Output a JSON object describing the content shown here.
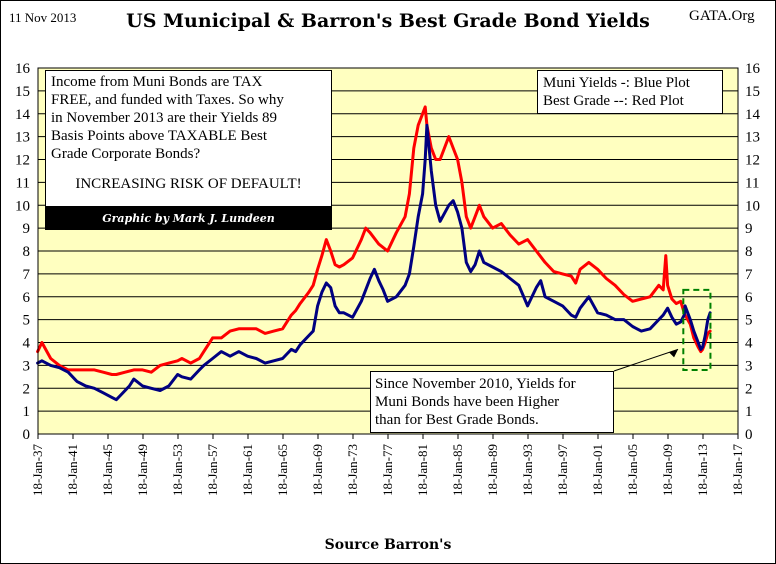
{
  "header": {
    "date": "11 Nov 2013",
    "title": "US Municipal & Barron's Best Grade Bond Yields",
    "site": "GATA.Org"
  },
  "annotations": {
    "note_lines": [
      "Income from Muni Bonds are TAX",
      "FREE, and funded with Taxes.  So why",
      "in November 2013 are their Yields 89",
      "Basis Points above TAXABLE Best",
      "Grade Corporate Bonds?"
    ],
    "warning": "INCREASING RISK OF DEFAULT!",
    "credit": "Graphic by Mark J. Lundeen",
    "legend_line1": "Muni Yields -: Blue Plot",
    "legend_line2": "Best Grade --: Red Plot",
    "since_lines": [
      "Since November 2010,  Yields for",
      "Muni Bonds have been Higher",
      "than for Best Grade Bonds."
    ],
    "source": "Source Barron's"
  },
  "colors": {
    "plot_background": "#ffffc0",
    "muni": "#000080",
    "best_grade": "#ff0000",
    "highlight_box": "#008000"
  },
  "chart_data": {
    "type": "line",
    "title": "US Municipal & Barron's Best Grade Bond Yields",
    "xlabel": "Source Barron's",
    "ylabel": "",
    "xlim": [
      1937.05,
      2017.05
    ],
    "ylim": [
      0,
      16
    ],
    "y_ticks": [
      "0",
      "1",
      "2",
      "3",
      "4",
      "5",
      "6",
      "7",
      "8",
      "9",
      "10",
      "11",
      "12",
      "13",
      "14",
      "15",
      "16"
    ],
    "x_tick_labels": [
      "18-Jan-37",
      "18-Jan-41",
      "18-Jan-45",
      "18-Jan-49",
      "18-Jan-53",
      "18-Jan-57",
      "18-Jan-61",
      "18-Jan-65",
      "18-Jan-69",
      "18-Jan-73",
      "18-Jan-77",
      "18-Jan-81",
      "18-Jan-85",
      "18-Jan-89",
      "18-Jan-93",
      "18-Jan-97",
      "18-Jan-01",
      "18-Jan-05",
      "18-Jan-09",
      "18-Jan-13",
      "18-Jan-17"
    ],
    "x_tick_years": [
      1937.05,
      1941.05,
      1945.05,
      1949.05,
      1953.05,
      1957.05,
      1961.05,
      1965.05,
      1969.05,
      1973.05,
      1977.05,
      1981.05,
      1985.05,
      1989.05,
      1993.05,
      1997.05,
      2001.05,
      2005.05,
      2009.05,
      2013.05,
      2017.05
    ],
    "highlight_range": {
      "x": [
        2010.8,
        2013.9
      ],
      "y": [
        2.8,
        6.3
      ]
    },
    "series": [
      {
        "name": "Muni Yields",
        "color": "#000080",
        "x": [
          1937.0,
          1937.5,
          1938.5,
          1939.5,
          1940.5,
          1941.5,
          1942.5,
          1943.5,
          1944.5,
          1945.5,
          1946.0,
          1946.5,
          1947.5,
          1948.0,
          1949.0,
          1950.0,
          1951.0,
          1952.0,
          1953.0,
          1953.5,
          1954.5,
          1955.5,
          1956.0,
          1957.0,
          1958.0,
          1959.0,
          1960.0,
          1961.0,
          1962.0,
          1963.0,
          1964.0,
          1965.0,
          1966.0,
          1966.5,
          1967.0,
          1968.0,
          1968.5,
          1969.0,
          1969.5,
          1970.0,
          1970.5,
          1971.0,
          1971.5,
          1972.0,
          1973.0,
          1974.0,
          1974.5,
          1975.0,
          1975.5,
          1976.0,
          1976.5,
          1977.0,
          1978.0,
          1979.0,
          1979.5,
          1980.0,
          1980.5,
          1981.0,
          1981.3,
          1981.5,
          1982.0,
          1982.5,
          1983.0,
          1984.0,
          1984.5,
          1985.0,
          1985.5,
          1986.0,
          1986.5,
          1987.0,
          1987.5,
          1988.0,
          1989.0,
          1990.0,
          1991.0,
          1992.0,
          1993.0,
          1994.0,
          1994.5,
          1995.0,
          1996.0,
          1997.0,
          1998.0,
          1998.5,
          1999.0,
          2000.0,
          2001.0,
          2002.0,
          2003.0,
          2004.0,
          2005.0,
          2006.0,
          2007.0,
          2008.0,
          2008.5,
          2009.0,
          2009.5,
          2010.0,
          2010.5,
          2010.9,
          2011.0,
          2011.3,
          2011.6,
          2012.0,
          2012.5,
          2012.8,
          2013.0,
          2013.3,
          2013.6,
          2013.86
        ],
        "values": [
          3.1,
          3.2,
          3.0,
          2.9,
          2.7,
          2.3,
          2.1,
          2.0,
          1.8,
          1.6,
          1.5,
          1.7,
          2.1,
          2.4,
          2.1,
          2.0,
          1.9,
          2.1,
          2.6,
          2.5,
          2.4,
          2.8,
          3.0,
          3.3,
          3.6,
          3.4,
          3.6,
          3.4,
          3.3,
          3.1,
          3.2,
          3.3,
          3.7,
          3.6,
          3.9,
          4.3,
          4.5,
          5.6,
          6.2,
          6.6,
          6.4,
          5.6,
          5.3,
          5.3,
          5.1,
          5.8,
          6.3,
          6.8,
          7.2,
          6.7,
          6.3,
          5.8,
          6.0,
          6.5,
          7.0,
          8.2,
          9.5,
          10.5,
          12.0,
          13.5,
          11.5,
          10.0,
          9.3,
          10.0,
          10.2,
          9.7,
          9.0,
          7.5,
          7.1,
          7.4,
          8.0,
          7.5,
          7.3,
          7.1,
          6.8,
          6.5,
          5.6,
          6.4,
          6.7,
          6.0,
          5.8,
          5.6,
          5.2,
          5.1,
          5.5,
          6.0,
          5.3,
          5.2,
          5.0,
          5.0,
          4.7,
          4.5,
          4.6,
          5.0,
          5.2,
          5.5,
          5.1,
          4.8,
          4.9,
          5.2,
          5.6,
          5.3,
          5.0,
          4.5,
          4.0,
          3.7,
          3.8,
          4.3,
          5.0,
          5.3
        ]
      },
      {
        "name": "Best Grade",
        "color": "#ff0000",
        "x": [
          1937.0,
          1937.5,
          1938.5,
          1939.5,
          1940.5,
          1941.5,
          1942.5,
          1943.5,
          1944.5,
          1945.5,
          1946.0,
          1947.0,
          1948.0,
          1949.0,
          1950.0,
          1951.0,
          1952.0,
          1953.0,
          1953.5,
          1954.5,
          1955.5,
          1956.0,
          1957.0,
          1958.0,
          1959.0,
          1960.0,
          1961.0,
          1962.0,
          1963.0,
          1964.0,
          1965.0,
          1966.0,
          1966.5,
          1967.0,
          1968.0,
          1968.5,
          1969.0,
          1969.5,
          1970.0,
          1970.5,
          1971.0,
          1971.5,
          1972.0,
          1973.0,
          1974.0,
          1974.5,
          1975.0,
          1976.0,
          1977.0,
          1978.0,
          1979.0,
          1979.5,
          1980.0,
          1980.5,
          1981.0,
          1981.3,
          1981.5,
          1982.0,
          1982.5,
          1983.0,
          1984.0,
          1984.5,
          1985.0,
          1985.5,
          1986.0,
          1986.5,
          1987.0,
          1987.5,
          1988.0,
          1989.0,
          1990.0,
          1991.0,
          1992.0,
          1993.0,
          1994.0,
          1995.0,
          1996.0,
          1997.0,
          1998.0,
          1998.5,
          1999.0,
          2000.0,
          2001.0,
          2002.0,
          2003.0,
          2004.0,
          2005.0,
          2006.0,
          2007.0,
          2008.0,
          2008.5,
          2008.8,
          2009.0,
          2009.5,
          2010.0,
          2010.5,
          2010.9,
          2011.0,
          2011.3,
          2011.6,
          2012.0,
          2012.5,
          2012.8,
          2013.0,
          2013.3,
          2013.6,
          2013.86
        ],
        "values": [
          3.6,
          4.0,
          3.3,
          3.0,
          2.8,
          2.8,
          2.8,
          2.8,
          2.7,
          2.6,
          2.6,
          2.7,
          2.8,
          2.8,
          2.7,
          3.0,
          3.1,
          3.2,
          3.3,
          3.1,
          3.3,
          3.6,
          4.2,
          4.2,
          4.5,
          4.6,
          4.6,
          4.6,
          4.4,
          4.5,
          4.6,
          5.2,
          5.4,
          5.7,
          6.2,
          6.5,
          7.2,
          7.8,
          8.5,
          8.0,
          7.4,
          7.3,
          7.4,
          7.7,
          8.5,
          9.0,
          8.8,
          8.3,
          8.0,
          8.8,
          9.5,
          10.5,
          12.5,
          13.5,
          14.0,
          14.3,
          13.5,
          12.5,
          12.0,
          12.0,
          13.0,
          12.5,
          12.0,
          11.0,
          9.5,
          9.0,
          9.5,
          10.0,
          9.5,
          9.0,
          9.2,
          8.7,
          8.3,
          8.5,
          8.0,
          7.5,
          7.1,
          7.0,
          6.9,
          6.6,
          7.2,
          7.5,
          7.2,
          6.8,
          6.5,
          6.1,
          5.8,
          5.9,
          6.0,
          6.5,
          6.3,
          7.8,
          6.5,
          5.9,
          5.7,
          5.8,
          5.3,
          5.2,
          5.0,
          4.8,
          4.2,
          3.8,
          3.6,
          3.7,
          4.0,
          4.4,
          4.5
        ]
      }
    ]
  }
}
